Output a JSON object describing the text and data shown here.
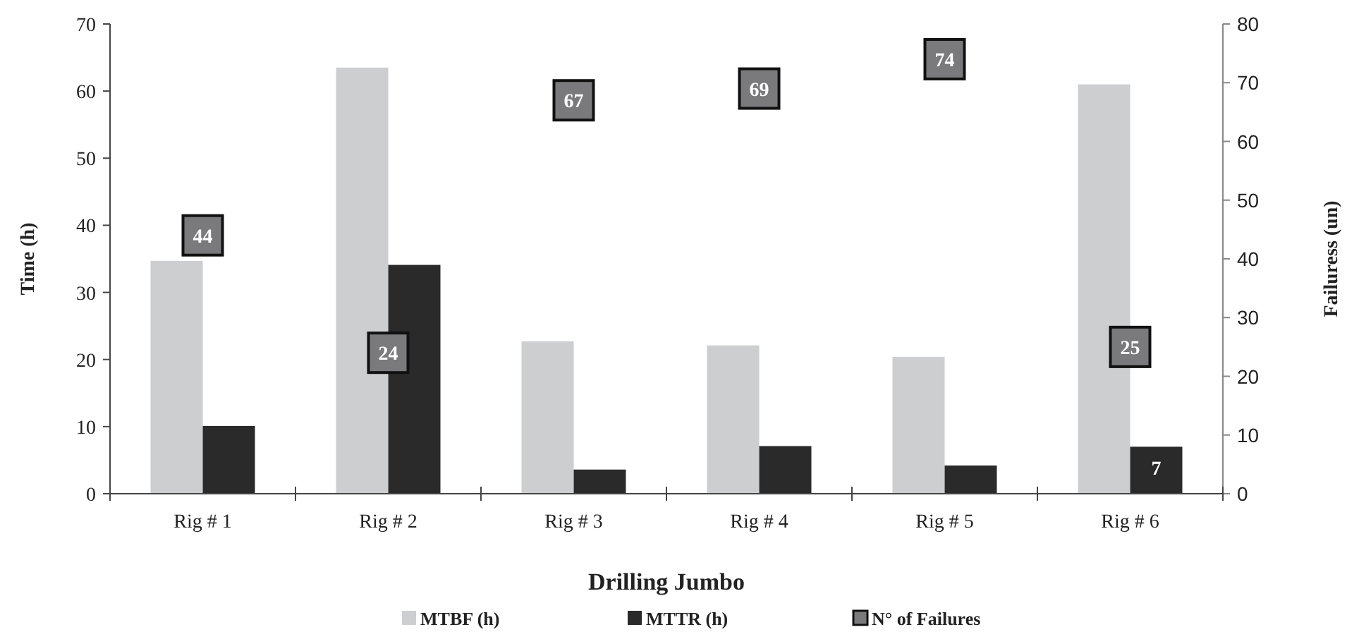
{
  "chart_data": {
    "type": "bar",
    "xlabel": "Drilling Jumbo",
    "ylabel": "Time (h)",
    "y2label": "Failuress (un)",
    "categories": [
      "Rig # 1",
      "Rig # 2",
      "Rig # 3",
      "Rig # 4",
      "Rig # 5",
      "Rig # 6"
    ],
    "series": [
      {
        "name": "MTBF (h)",
        "color": "#cdced0",
        "values": [
          34.7,
          63.5,
          22.7,
          22.1,
          20.4,
          61.0
        ]
      },
      {
        "name": "MTTR (h)",
        "color": "#2b2a2b",
        "values": [
          10.1,
          34.1,
          3.6,
          7.1,
          4.2,
          7
        ],
        "value_labels": [
          null,
          null,
          null,
          null,
          null,
          "7"
        ]
      },
      {
        "name": "N° of Failures",
        "type": "scatter",
        "axis": "y2",
        "marker": "square",
        "color": "#7a7a7c",
        "values": [
          44,
          24,
          67,
          69,
          74,
          25
        ],
        "value_labels": [
          "44",
          "24",
          "67",
          "69",
          "74",
          "25"
        ]
      }
    ],
    "ylim": [
      0,
      70
    ],
    "yticks": [
      0,
      10,
      20,
      30,
      40,
      50,
      60,
      70
    ],
    "y2lim": [
      0,
      80
    ],
    "y2ticks": [
      0,
      10,
      20,
      30,
      40,
      50,
      60,
      70,
      80
    ],
    "grid": false,
    "legend": "bottom"
  }
}
